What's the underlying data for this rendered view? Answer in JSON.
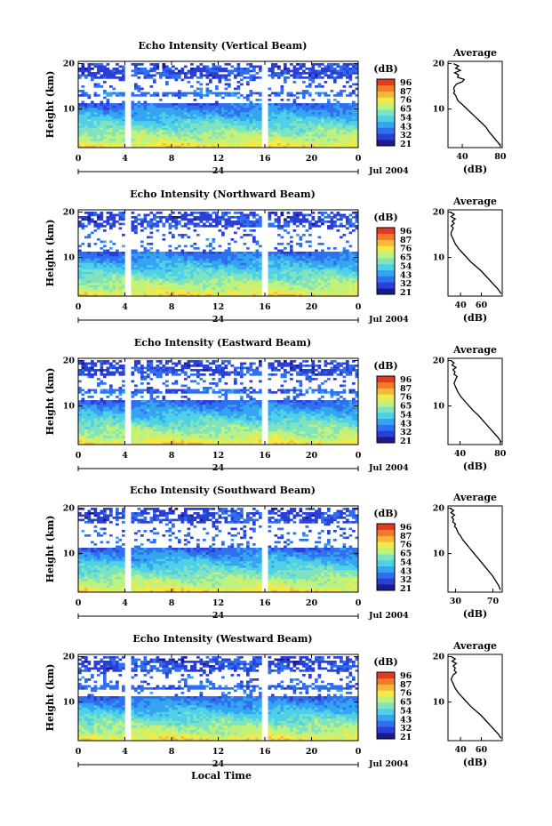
{
  "page": {
    "xlabel": "Local Time"
  },
  "colorbar": {
    "unit": "(dB)",
    "tick_labels": [
      "96",
      "87",
      "76",
      "65",
      "54",
      "43",
      "32",
      "21"
    ],
    "colors": [
      "#1a1c8c",
      "#2a3fd6",
      "#2f6ff0",
      "#35a5f2",
      "#4fd0e6",
      "#7fe3c0",
      "#bdf27e",
      "#f1ea4a",
      "#f7b83a",
      "#f27a2a",
      "#e23b22"
    ]
  },
  "chart_data": [
    {
      "type": "heatmap",
      "title": "Echo Intensity (Vertical Beam)",
      "ylabel": "Height (km)",
      "x_ticks": [
        "0",
        "4",
        "8",
        "12",
        "16",
        "20",
        "0"
      ],
      "x_range": [
        0,
        24
      ],
      "y_ticks": [
        "20",
        "10"
      ],
      "y_range": [
        1.5,
        20.5
      ],
      "date_mark": "24",
      "date_label": "Jul 2004",
      "data_gaps_hours": [
        [
          4.0,
          4.4
        ],
        [
          15.6,
          16.0
        ]
      ],
      "avg_profile": {
        "title": "Average",
        "xlabel": "(dB)",
        "x_ticks": [
          "40",
          "80"
        ],
        "x_range": [
          25,
          82
        ],
        "y_ticks": [
          "20",
          "10"
        ],
        "y_range": [
          1.5,
          20.5
        ],
        "height_km": [
          20,
          19.5,
          19,
          18.5,
          18,
          17.5,
          17,
          16.5,
          16,
          15.5,
          15,
          14.5,
          14,
          13.5,
          13,
          12.5,
          12,
          11.5,
          11,
          10,
          9,
          8,
          7,
          6,
          5,
          4,
          3,
          2
        ],
        "intensity_db": [
          31,
          36,
          33,
          38,
          32,
          36,
          35,
          42,
          40,
          34,
          32,
          31,
          32,
          31,
          33,
          34,
          35,
          37,
          40,
          45,
          50,
          55,
          60,
          65,
          68,
          72,
          76,
          80
        ]
      }
    },
    {
      "type": "heatmap",
      "title": "Echo Intensity (Northward Beam)",
      "ylabel": "Height (km)",
      "x_ticks": [
        "0",
        "4",
        "8",
        "12",
        "16",
        "20",
        "0"
      ],
      "x_range": [
        0,
        24
      ],
      "y_ticks": [
        "20",
        "10"
      ],
      "y_range": [
        1.5,
        20.5
      ],
      "date_mark": "24",
      "date_label": "Jul 2004",
      "data_gaps_hours": [
        [
          4.0,
          4.4
        ],
        [
          15.6,
          16.0
        ]
      ],
      "avg_profile": {
        "title": "Average",
        "xlabel": "(dB)",
        "x_ticks": [
          "40",
          "60"
        ],
        "x_range": [
          28,
          80
        ],
        "y_ticks": [
          "20",
          "10"
        ],
        "y_range": [
          1.5,
          20.5
        ],
        "height_km": [
          20,
          19.5,
          19,
          18.5,
          18,
          17.5,
          17,
          16.5,
          16,
          15.5,
          15,
          14.5,
          14,
          13,
          12,
          11,
          10,
          9,
          8,
          7,
          6,
          5,
          4,
          3,
          2
        ],
        "intensity_db": [
          30,
          34,
          31,
          35,
          32,
          34,
          31,
          33,
          32,
          31,
          31,
          32,
          33,
          35,
          38,
          42,
          46,
          50,
          55,
          60,
          64,
          68,
          72,
          76,
          79
        ]
      }
    },
    {
      "type": "heatmap",
      "title": "Echo Intensity (Eastward Beam)",
      "ylabel": "Height (km)",
      "x_ticks": [
        "0",
        "4",
        "8",
        "12",
        "16",
        "20",
        "0"
      ],
      "x_range": [
        0,
        24
      ],
      "y_ticks": [
        "20",
        "10"
      ],
      "y_range": [
        1.5,
        20.5
      ],
      "date_mark": "24",
      "date_label": "Jul 2004",
      "data_gaps_hours": [
        [
          4.0,
          4.4
        ],
        [
          15.6,
          16.0
        ]
      ],
      "avg_profile": {
        "title": "Average",
        "xlabel": "(dB)",
        "x_ticks": [
          "40",
          "80"
        ],
        "x_range": [
          28,
          82
        ],
        "y_ticks": [
          "20",
          "10"
        ],
        "y_range": [
          1.5,
          20.5
        ],
        "height_km": [
          20,
          19.5,
          19,
          18.5,
          18,
          17.5,
          17,
          16.5,
          16,
          15.5,
          15,
          14.5,
          14,
          13,
          12,
          11,
          10,
          9,
          8,
          7,
          6,
          5,
          4,
          3,
          2
        ],
        "intensity_db": [
          31,
          34,
          32,
          36,
          33,
          35,
          34,
          37,
          36,
          35,
          34,
          35,
          36,
          38,
          41,
          45,
          49,
          53,
          58,
          62,
          66,
          70,
          74,
          78,
          81
        ]
      }
    },
    {
      "type": "heatmap",
      "title": "Echo Intensity (Southward Beam)",
      "ylabel": "Height (km)",
      "x_ticks": [
        "0",
        "4",
        "8",
        "12",
        "16",
        "20",
        "0"
      ],
      "x_range": [
        0,
        24
      ],
      "y_ticks": [
        "20",
        "10"
      ],
      "y_range": [
        1.5,
        20.5
      ],
      "date_mark": "24",
      "date_label": "Jul 2004",
      "data_gaps_hours": [
        [
          4.0,
          4.4
        ],
        [
          15.6,
          16.0
        ]
      ],
      "avg_profile": {
        "title": "Average",
        "xlabel": "(dB)",
        "x_ticks": [
          "30",
          "70"
        ],
        "x_range": [
          22,
          80
        ],
        "y_ticks": [
          "20",
          "10"
        ],
        "y_range": [
          1.5,
          20.5
        ],
        "height_km": [
          20,
          19.5,
          19,
          18.5,
          18,
          17.5,
          17,
          16.5,
          16,
          15.5,
          15,
          14.5,
          14,
          13,
          12,
          11,
          10,
          9,
          8,
          7,
          6,
          5,
          4,
          3,
          2
        ],
        "intensity_db": [
          24,
          28,
          25,
          29,
          26,
          28,
          27,
          30,
          29,
          31,
          32,
          33,
          35,
          38,
          42,
          46,
          50,
          54,
          58,
          62,
          66,
          70,
          73,
          76,
          78
        ]
      }
    },
    {
      "type": "heatmap",
      "title": "Echo Intensity (Westward Beam)",
      "ylabel": "Height (km)",
      "x_ticks": [
        "0",
        "4",
        "8",
        "12",
        "16",
        "20",
        "0"
      ],
      "x_range": [
        0,
        24
      ],
      "y_ticks": [
        "20",
        "10"
      ],
      "y_range": [
        1.5,
        20.5
      ],
      "date_mark": "24",
      "date_label": "Jul 2004",
      "data_gaps_hours": [
        [
          4.0,
          4.4
        ],
        [
          15.6,
          16.0
        ]
      ],
      "avg_profile": {
        "title": "Average",
        "xlabel": "(dB)",
        "x_ticks": [
          "40",
          "60"
        ],
        "x_range": [
          28,
          80
        ],
        "y_ticks": [
          "20",
          "10"
        ],
        "y_range": [
          1.5,
          20.5
        ],
        "height_km": [
          20,
          19.5,
          19,
          18.5,
          18,
          17.5,
          17,
          16.5,
          16,
          15.5,
          15,
          14.5,
          14,
          13,
          12,
          11,
          10,
          9,
          8,
          7,
          6,
          5,
          4,
          3,
          2
        ],
        "intensity_db": [
          31,
          35,
          32,
          36,
          33,
          35,
          34,
          36,
          33,
          32,
          31,
          32,
          33,
          35,
          38,
          42,
          46,
          50,
          55,
          60,
          64,
          68,
          72,
          76,
          79
        ]
      }
    }
  ]
}
